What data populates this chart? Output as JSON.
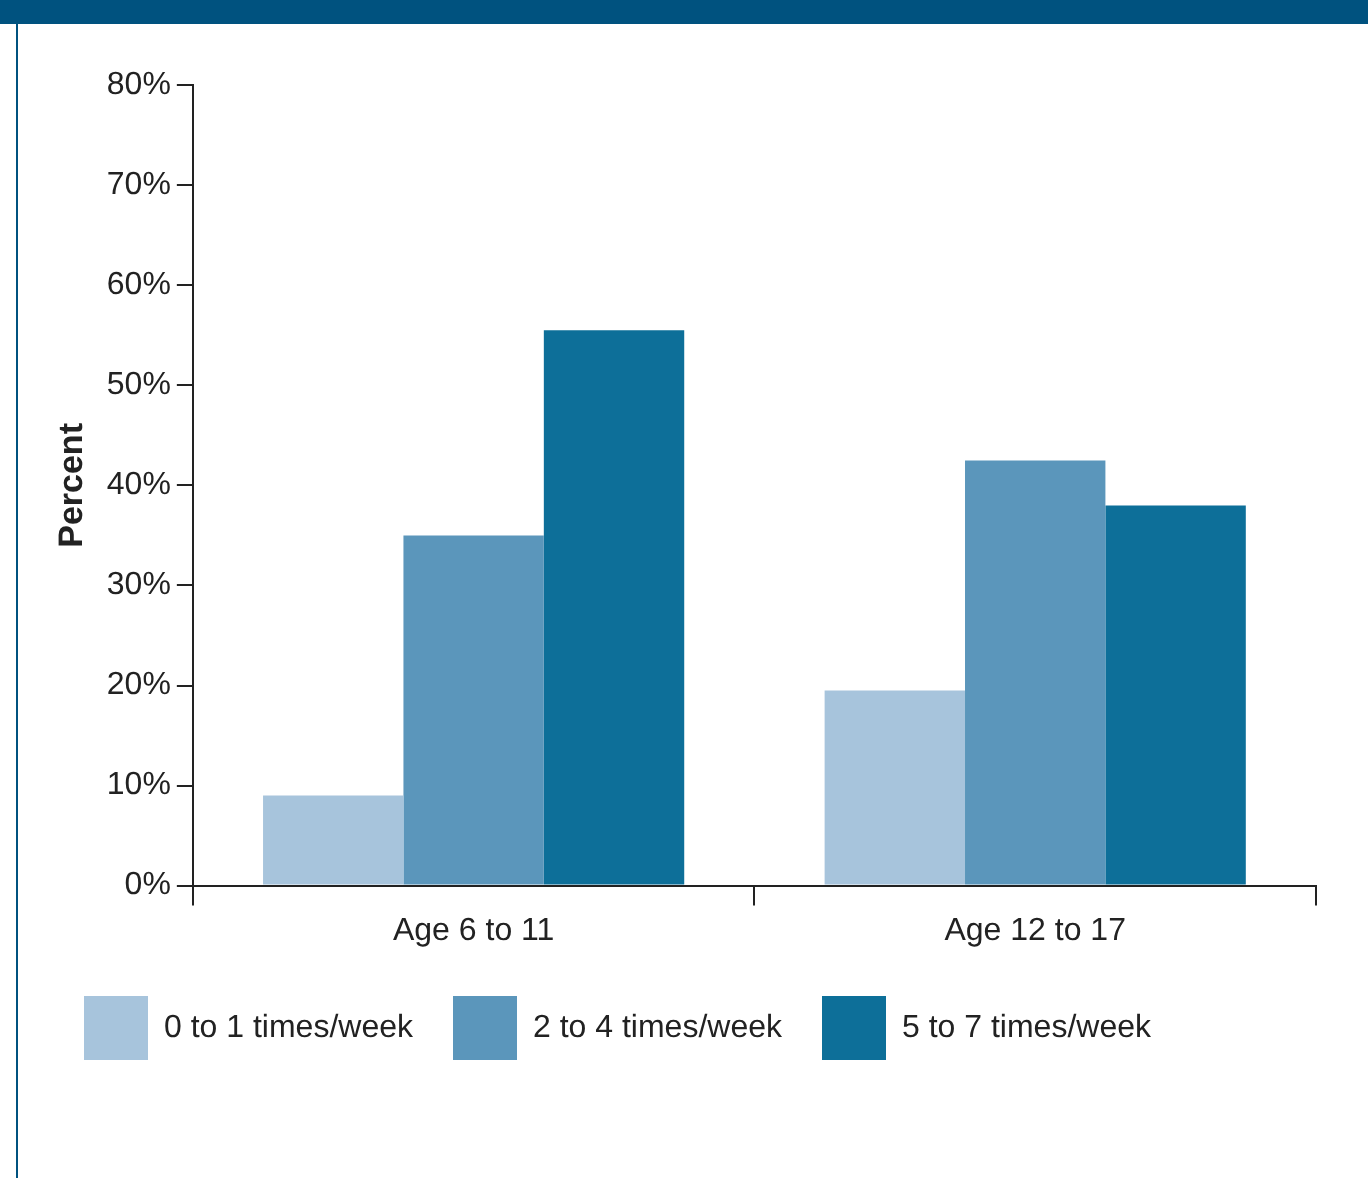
{
  "chart_data": {
    "type": "bar",
    "ylabel": "Percent",
    "categories": [
      "Age 6 to 11",
      "Age 12 to 17"
    ],
    "series": [
      {
        "name": "0 to 1 times/week",
        "color": "#a7c4dc",
        "values": [
          9,
          19.5
        ]
      },
      {
        "name": "2 to 4 times/week",
        "color": "#5b96bb",
        "values": [
          35,
          42.5
        ]
      },
      {
        "name": "5 to 7 times/week",
        "color": "#0d6f99",
        "values": [
          55.5,
          38
        ]
      }
    ],
    "ylim": [
      0,
      80
    ],
    "yticks": [
      {
        "value": 0,
        "label": "0%"
      },
      {
        "value": 10,
        "label": "10%"
      },
      {
        "value": 20,
        "label": "20%"
      },
      {
        "value": 30,
        "label": "30%"
      },
      {
        "value": 40,
        "label": "40%"
      },
      {
        "value": 50,
        "label": "50%"
      },
      {
        "value": 60,
        "label": "60%"
      },
      {
        "value": 70,
        "label": "70%"
      },
      {
        "value": 80,
        "label": "80%"
      }
    ],
    "grid": false,
    "legend": "bottom"
  }
}
